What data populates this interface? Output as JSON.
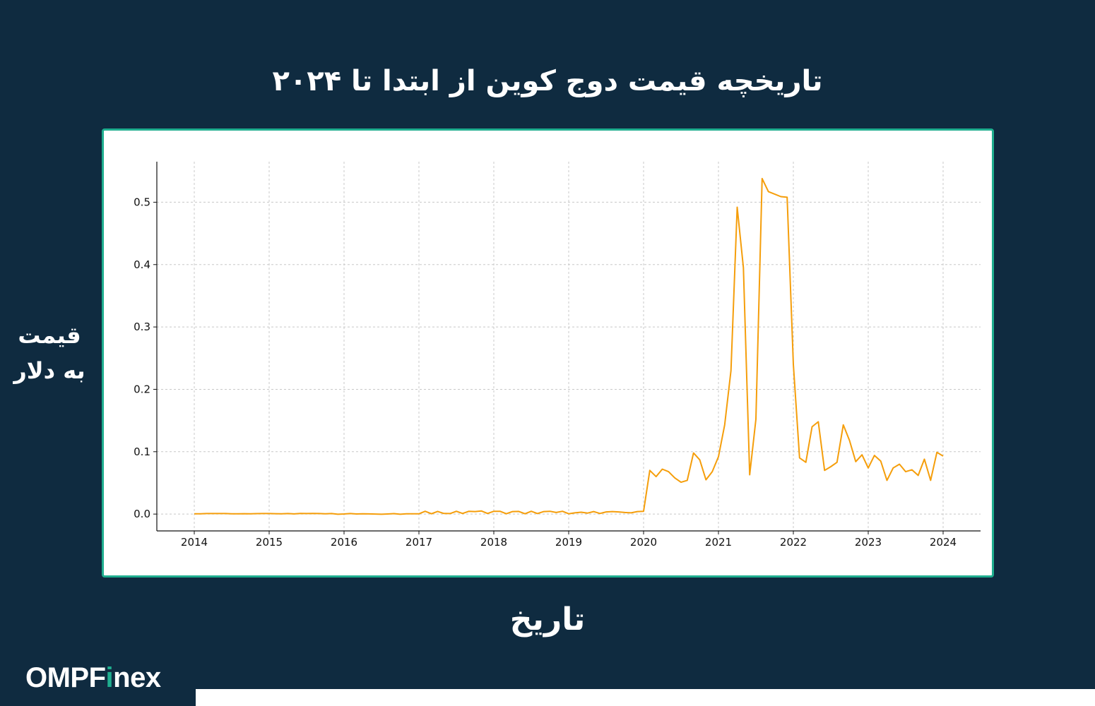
{
  "page": {
    "title": "تاریخچه قیمت دوج کوین از ابتدا تا ۲۰۲۴"
  },
  "logo": {
    "part1": "OMPF",
    "part2": "i",
    "part3": "nex"
  },
  "colors": {
    "background": "#0f2b40",
    "accent": "#1fae8f",
    "line": "#f59e0b",
    "grid": "#c8c8c8"
  },
  "chart_data": {
    "type": "line",
    "title": "تاریخچه قیمت دوج کوین از ابتدا تا ۲۰۲۴",
    "xlabel": "تاریخ",
    "ylabel_lines": [
      "قیمت",
      "به دلار"
    ],
    "xlim": [
      2013.5,
      2024.5
    ],
    "ylim": [
      -0.027,
      0.565
    ],
    "x_ticks": [
      2014,
      2015,
      2016,
      2017,
      2018,
      2019,
      2020,
      2021,
      2022,
      2023,
      2024
    ],
    "x_tick_labels": [
      "2014",
      "2015",
      "2016",
      "2017",
      "2018",
      "2019",
      "2020",
      "2021",
      "2022",
      "2023",
      "2024"
    ],
    "y_ticks": [
      0.0,
      0.1,
      0.2,
      0.3,
      0.4,
      0.5
    ],
    "y_tick_labels": [
      "0.0",
      "0.1",
      "0.2",
      "0.3",
      "0.4",
      "0.5"
    ],
    "grid": true,
    "series": [
      {
        "color": "#f59e0b",
        "points": [
          [
            2014.0,
            0.0005
          ],
          [
            2014.083,
            0.0004
          ],
          [
            2014.167,
            0.0008
          ],
          [
            2014.25,
            0.0009
          ],
          [
            2014.333,
            0.0009
          ],
          [
            2014.417,
            0.0008
          ],
          [
            2014.5,
            0.0004
          ],
          [
            2014.583,
            0.0005
          ],
          [
            2014.667,
            0.0006
          ],
          [
            2014.75,
            0.0005
          ],
          [
            2014.833,
            0.0007
          ],
          [
            2014.917,
            0.0008
          ],
          [
            2015.0,
            0.0008
          ],
          [
            2015.083,
            0.0006
          ],
          [
            2015.167,
            0.0004
          ],
          [
            2015.25,
            0.0009
          ],
          [
            2015.333,
            0.0003
          ],
          [
            2015.417,
            0.0011
          ],
          [
            2015.5,
            0.0008
          ],
          [
            2015.583,
            0.001
          ],
          [
            2015.667,
            0.0009
          ],
          [
            2015.75,
            0.0005
          ],
          [
            2015.833,
            0.0008
          ],
          [
            2015.917,
            -0.0003
          ],
          [
            2016.0,
            0.0002
          ],
          [
            2016.083,
            0.0008
          ],
          [
            2016.167,
            0.0002
          ],
          [
            2016.25,
            0.0004
          ],
          [
            2016.333,
            0.0003
          ],
          [
            2016.417,
            0.0001
          ],
          [
            2016.5,
            -0.0003
          ],
          [
            2016.583,
            0.0002
          ],
          [
            2016.667,
            0.0007
          ],
          [
            2016.75,
            -0.0003
          ],
          [
            2016.833,
            0.0004
          ],
          [
            2016.917,
            0.0005
          ],
          [
            2017.0,
            0.0004
          ],
          [
            2017.083,
            0.0045
          ],
          [
            2017.167,
            0.0005
          ],
          [
            2017.25,
            0.0042
          ],
          [
            2017.333,
            0.001
          ],
          [
            2017.417,
            0.0008
          ],
          [
            2017.5,
            0.0045
          ],
          [
            2017.583,
            0.001
          ],
          [
            2017.667,
            0.0045
          ],
          [
            2017.75,
            0.004
          ],
          [
            2017.833,
            0.005
          ],
          [
            2017.917,
            0.001
          ],
          [
            2018.0,
            0.0045
          ],
          [
            2018.083,
            0.0045
          ],
          [
            2018.167,
            0.0005
          ],
          [
            2018.25,
            0.004
          ],
          [
            2018.333,
            0.0042
          ],
          [
            2018.417,
            0.0005
          ],
          [
            2018.5,
            0.0045
          ],
          [
            2018.583,
            0.0008
          ],
          [
            2018.667,
            0.004
          ],
          [
            2018.75,
            0.0045
          ],
          [
            2018.833,
            0.0025
          ],
          [
            2018.917,
            0.0045
          ],
          [
            2019.0,
            0.0005
          ],
          [
            2019.083,
            0.002
          ],
          [
            2019.167,
            0.003
          ],
          [
            2019.25,
            0.0015
          ],
          [
            2019.333,
            0.004
          ],
          [
            2019.417,
            0.001
          ],
          [
            2019.5,
            0.0035
          ],
          [
            2019.583,
            0.004
          ],
          [
            2019.667,
            0.0035
          ],
          [
            2019.75,
            0.0025
          ],
          [
            2019.833,
            0.002
          ],
          [
            2019.917,
            0.004
          ],
          [
            2020.0,
            0.0045
          ],
          [
            2020.083,
            0.07
          ],
          [
            2020.167,
            0.06
          ],
          [
            2020.25,
            0.072
          ],
          [
            2020.333,
            0.068
          ],
          [
            2020.417,
            0.058
          ],
          [
            2020.5,
            0.051
          ],
          [
            2020.583,
            0.054
          ],
          [
            2020.667,
            0.098
          ],
          [
            2020.75,
            0.087
          ],
          [
            2020.833,
            0.055
          ],
          [
            2020.917,
            0.068
          ],
          [
            2021.0,
            0.092
          ],
          [
            2021.083,
            0.143
          ],
          [
            2021.167,
            0.23
          ],
          [
            2021.25,
            0.492
          ],
          [
            2021.333,
            0.395
          ],
          [
            2021.417,
            0.063
          ],
          [
            2021.5,
            0.152
          ],
          [
            2021.583,
            0.538
          ],
          [
            2021.667,
            0.517
          ],
          [
            2021.75,
            0.513
          ],
          [
            2021.833,
            0.509
          ],
          [
            2021.917,
            0.508
          ],
          [
            2022.0,
            0.24
          ],
          [
            2022.083,
            0.09
          ],
          [
            2022.167,
            0.083
          ],
          [
            2022.25,
            0.14
          ],
          [
            2022.333,
            0.148
          ],
          [
            2022.417,
            0.07
          ],
          [
            2022.5,
            0.076
          ],
          [
            2022.583,
            0.083
          ],
          [
            2022.667,
            0.143
          ],
          [
            2022.75,
            0.118
          ],
          [
            2022.833,
            0.084
          ],
          [
            2022.917,
            0.095
          ],
          [
            2023.0,
            0.074
          ],
          [
            2023.083,
            0.094
          ],
          [
            2023.167,
            0.085
          ],
          [
            2023.25,
            0.054
          ],
          [
            2023.333,
            0.074
          ],
          [
            2023.417,
            0.08
          ],
          [
            2023.5,
            0.068
          ],
          [
            2023.583,
            0.071
          ],
          [
            2023.667,
            0.062
          ],
          [
            2023.75,
            0.088
          ],
          [
            2023.833,
            0.054
          ],
          [
            2023.917,
            0.099
          ],
          [
            2024.0,
            0.093
          ]
        ]
      }
    ]
  }
}
